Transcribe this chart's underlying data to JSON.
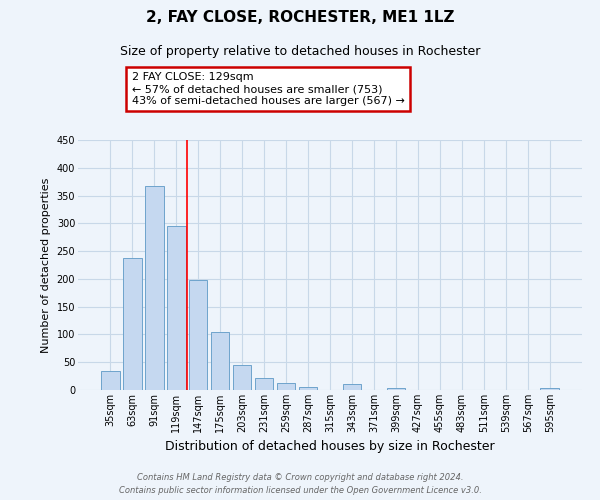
{
  "title": "2, FAY CLOSE, ROCHESTER, ME1 1LZ",
  "subtitle": "Size of property relative to detached houses in Rochester",
  "xlabel": "Distribution of detached houses by size in Rochester",
  "ylabel": "Number of detached properties",
  "categories": [
    "35sqm",
    "63sqm",
    "91sqm",
    "119sqm",
    "147sqm",
    "175sqm",
    "203sqm",
    "231sqm",
    "259sqm",
    "287sqm",
    "315sqm",
    "343sqm",
    "371sqm",
    "399sqm",
    "427sqm",
    "455sqm",
    "483sqm",
    "511sqm",
    "539sqm",
    "567sqm",
    "595sqm"
  ],
  "values": [
    35,
    237,
    368,
    296,
    198,
    105,
    45,
    21,
    12,
    5,
    0,
    10,
    0,
    4,
    0,
    0,
    0,
    0,
    0,
    0,
    3
  ],
  "bar_color": "#c5d8f0",
  "bar_edge_color": "#6ea3cc",
  "grid_color": "#c8d8e8",
  "background_color": "#eef4fb",
  "red_line_x": 3.5,
  "annotation_title": "2 FAY CLOSE: 129sqm",
  "annotation_line1": "← 57% of detached houses are smaller (753)",
  "annotation_line2": "43% of semi-detached houses are larger (567) →",
  "annotation_box_color": "#ffffff",
  "annotation_box_edge_color": "#cc0000",
  "footer_line1": "Contains HM Land Registry data © Crown copyright and database right 2024.",
  "footer_line2": "Contains public sector information licensed under the Open Government Licence v3.0.",
  "ylim": [
    0,
    450
  ],
  "yticks": [
    0,
    50,
    100,
    150,
    200,
    250,
    300,
    350,
    400,
    450
  ],
  "title_fontsize": 11,
  "subtitle_fontsize": 9,
  "ylabel_fontsize": 8,
  "xlabel_fontsize": 9,
  "tick_fontsize": 7,
  "footer_fontsize": 6,
  "annotation_fontsize": 8
}
